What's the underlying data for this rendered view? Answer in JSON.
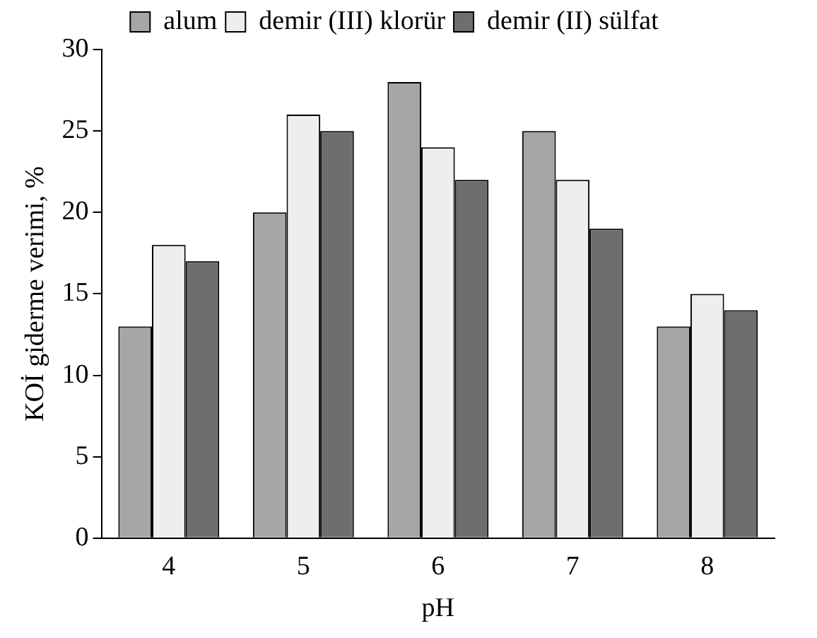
{
  "chart_data": {
    "type": "bar",
    "xlabel": "pH",
    "ylabel": "KOİ giderme verimi, %",
    "categories": [
      "4",
      "5",
      "6",
      "7",
      "8"
    ],
    "series": [
      {
        "name": "alum",
        "color": "#a6a6a6",
        "values": [
          13,
          20,
          28,
          25,
          13
        ]
      },
      {
        "name": "demir (III) klorür",
        "color": "#eeeeee",
        "values": [
          18,
          26,
          24,
          22,
          15
        ]
      },
      {
        "name": "demir (II) sülfat",
        "color": "#6e6e6e",
        "values": [
          17,
          25,
          22,
          19,
          14
        ]
      }
    ],
    "ylim": [
      0,
      30
    ],
    "yticks": [
      0,
      5,
      10,
      15,
      20,
      25,
      30
    ],
    "grid": false,
    "legend": "top"
  }
}
